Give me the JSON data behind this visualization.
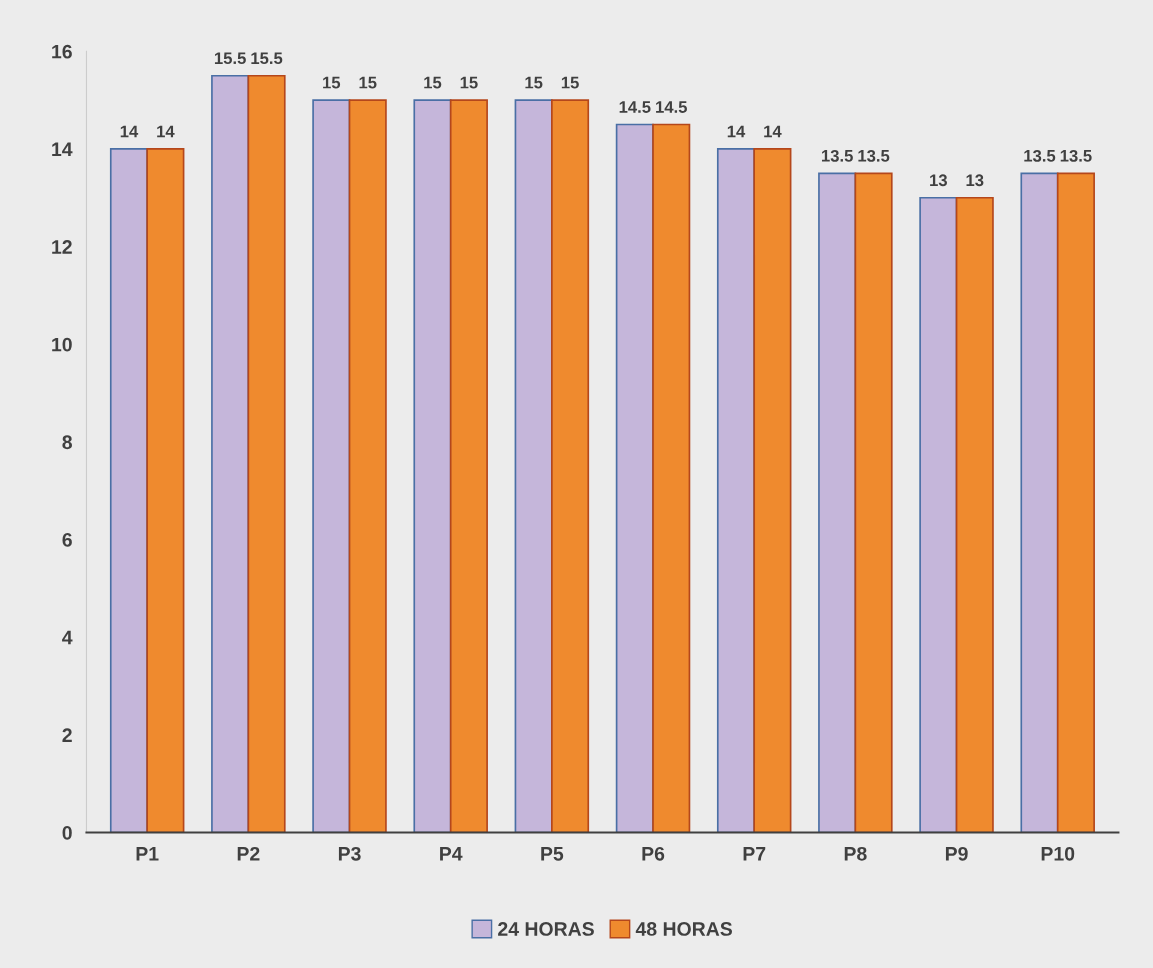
{
  "chart_data": {
    "type": "bar",
    "categories": [
      "P1",
      "P2",
      "P3",
      "P4",
      "P5",
      "P6",
      "P7",
      "P8",
      "P9",
      "P10"
    ],
    "series": [
      {
        "name": "24 HORAS",
        "color": "#c5b6da",
        "values": [
          14,
          15.5,
          15,
          15,
          15,
          14.5,
          14,
          13.5,
          13,
          13.5
        ]
      },
      {
        "name": "48 HORAS",
        "color": "#ef8a2e",
        "values": [
          14,
          15.5,
          15,
          15,
          15,
          14.5,
          14,
          13.5,
          13,
          13.5
        ]
      }
    ],
    "ylim": [
      0,
      16
    ],
    "yticks": [
      0,
      2,
      4,
      6,
      8,
      10,
      12,
      14,
      16
    ],
    "data_labels": true,
    "grid": false,
    "legend": "bottom"
  }
}
